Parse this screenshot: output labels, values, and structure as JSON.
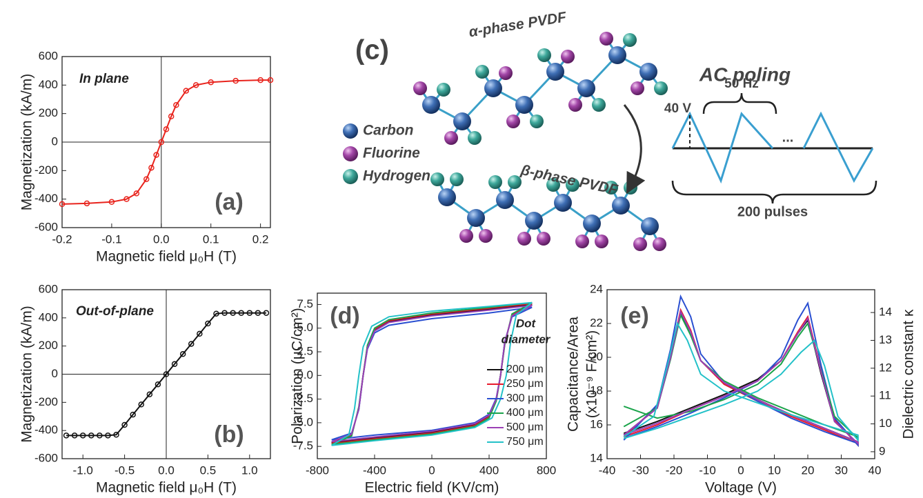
{
  "chart_data": [
    {
      "type": "line",
      "markers": true,
      "zero_lines": true,
      "xlabel": "Magnetic field μ₀H (T)",
      "ylabel": "Magnetization (kA/m)",
      "annotations": [
        "In plane",
        "(a)"
      ],
      "xlim": [
        -0.2,
        0.22
      ],
      "ylim": [
        -600,
        600
      ],
      "xticks": [
        -0.2,
        -0.1,
        {
          "value": 0,
          "label": "0.0"
        },
        0.1,
        0.2
      ],
      "yticks": [
        -600,
        -400,
        -200,
        0,
        200,
        400,
        600
      ],
      "series": [
        {
          "color": "#e8231c",
          "x": [
            -0.2,
            -0.15,
            -0.1,
            -0.07,
            -0.05,
            -0.03,
            -0.02,
            -0.01,
            0,
            0.01,
            0.02,
            0.03,
            0.05,
            0.07,
            0.1,
            0.15,
            0.2,
            0.22
          ],
          "values": [
            -435,
            -430,
            -420,
            -400,
            -360,
            -260,
            -180,
            -90,
            0,
            90,
            180,
            260,
            360,
            400,
            420,
            430,
            435,
            435
          ]
        }
      ]
    },
    {
      "type": "line",
      "markers": true,
      "zero_lines": true,
      "xlabel": "Magnetic field μ₀H (T)",
      "ylabel": "Magnetization (kA/m)",
      "annotations": [
        "Out-of-plane",
        "(b)"
      ],
      "xlim": [
        -1.25,
        1.25
      ],
      "ylim": [
        -600,
        600
      ],
      "xticks": [
        {
          "value": -1,
          "label": "-1.0"
        },
        -0.5,
        {
          "value": 0,
          "label": "0.0"
        },
        0.5,
        {
          "value": 1,
          "label": "1.0"
        }
      ],
      "yticks": [
        -600,
        -400,
        -200,
        0,
        200,
        400,
        600
      ],
      "series": [
        {
          "color": "#111111",
          "x": [
            -1.2,
            -1.1,
            -1.0,
            -0.9,
            -0.8,
            -0.7,
            -0.6,
            -0.5,
            -0.4,
            -0.3,
            -0.2,
            -0.1,
            0,
            0.1,
            0.2,
            0.3,
            0.4,
            0.5,
            0.6,
            0.7,
            0.8,
            0.9,
            1.0,
            1.1,
            1.2
          ],
          "values": [
            -435,
            -435,
            -435,
            -435,
            -435,
            -435,
            -430,
            -360,
            -287,
            -215,
            -143,
            -72,
            0,
            72,
            143,
            215,
            287,
            360,
            430,
            435,
            435,
            435,
            435,
            435,
            435
          ]
        }
      ]
    },
    {
      "type": "line",
      "legend": true,
      "xlabel": "Electric field (KV/cm)",
      "ylabel": "Polarization (μC/cm²)",
      "annotations": [
        "(d)"
      ],
      "legend_title": [
        "Dot",
        "diameter"
      ],
      "xlim": [
        -800,
        800
      ],
      "ylim": [
        -8.8,
        8.7
      ],
      "xticks": [
        -800,
        -400,
        0,
        400,
        800
      ],
      "yticks": [
        -7.5,
        {
          "value": -5,
          "label": "-5.0"
        },
        -2.5,
        {
          "value": 0,
          "label": "0.0"
        },
        2.5,
        {
          "value": 5,
          "label": "5.0"
        },
        7.5
      ],
      "series": [
        {
          "name": "200 μm",
          "color": "#111111",
          "x": [
            700,
            400,
            0,
            -300,
            -400,
            -450,
            -480,
            -510,
            -560,
            -700,
            -700,
            -400,
            0,
            300,
            400,
            450,
            480,
            510,
            560,
            700
          ],
          "values": [
            7.5,
            7.0,
            6.4,
            5.7,
            4.8,
            3.0,
            0,
            -3.5,
            -6.2,
            -7.1,
            -7.1,
            -6.6,
            -6.0,
            -5.2,
            -4.3,
            -2.5,
            0,
            3.5,
            6.3,
            7.5
          ]
        },
        {
          "name": "250 μm",
          "color": "#e8192c",
          "x": [
            700,
            400,
            0,
            -300,
            -400,
            -450,
            -480,
            -510,
            -560,
            -700,
            -700,
            -400,
            0,
            300,
            400,
            450,
            480,
            510,
            560,
            700
          ],
          "values": [
            7.6,
            7.1,
            6.5,
            5.8,
            4.9,
            3.1,
            0,
            -3.4,
            -6.3,
            -7.2,
            -7.2,
            -6.7,
            -6.1,
            -5.3,
            -4.4,
            -2.6,
            0,
            3.4,
            6.4,
            7.6
          ]
        },
        {
          "name": "300 μm",
          "color": "#2a4fd1",
          "x": [
            700,
            400,
            0,
            -300,
            -400,
            -450,
            -480,
            -510,
            -560,
            -700,
            -700,
            -400,
            0,
            300,
            400,
            450,
            480,
            510,
            560,
            700
          ],
          "values": [
            7.2,
            6.6,
            6.0,
            5.3,
            4.5,
            2.8,
            0,
            -3.6,
            -6.1,
            -6.8,
            -6.8,
            -6.3,
            -5.8,
            -5.0,
            -4.1,
            -2.4,
            0,
            3.6,
            6.2,
            7.2
          ]
        },
        {
          "name": "400 μm",
          "color": "#1aa34a",
          "x": [
            700,
            400,
            0,
            -300,
            -400,
            -450,
            -480,
            -510,
            -560,
            -700,
            -700,
            -400,
            0,
            300,
            400,
            450,
            480,
            510,
            560,
            700
          ],
          "values": [
            7.7,
            7.2,
            6.6,
            5.9,
            5.0,
            3.2,
            0,
            -3.3,
            -6.4,
            -7.3,
            -7.3,
            -6.8,
            -6.2,
            -5.4,
            -4.5,
            -2.7,
            0,
            3.3,
            6.5,
            7.7
          ]
        },
        {
          "name": "500 μm",
          "color": "#9b3fb5",
          "x": [
            700,
            400,
            0,
            -300,
            -400,
            -450,
            -480,
            -510,
            -560,
            -700,
            -700,
            -400,
            0,
            300,
            400,
            450,
            480,
            510,
            560,
            700
          ],
          "values": [
            7.4,
            6.9,
            6.3,
            5.6,
            4.7,
            2.9,
            0,
            -3.5,
            -6.2,
            -7.0,
            -7.0,
            -6.5,
            -5.9,
            -5.1,
            -4.2,
            -2.5,
            0,
            3.5,
            6.3,
            7.4
          ]
        },
        {
          "name": "750 μm",
          "color": "#23c1c8",
          "x": [
            700,
            400,
            0,
            -300,
            -420,
            -480,
            -510,
            -540,
            -580,
            -700,
            -700,
            -400,
            0,
            300,
            420,
            480,
            520,
            550,
            590,
            700
          ],
          "values": [
            7.7,
            7.3,
            6.8,
            6.2,
            5.2,
            3.0,
            0,
            -3.5,
            -6.3,
            -7.4,
            -7.4,
            -6.9,
            -6.3,
            -5.5,
            -4.5,
            -2.5,
            0,
            3.5,
            6.4,
            7.7
          ]
        }
      ]
    },
    {
      "type": "line",
      "xlabel": "Voltage (V)",
      "ylabel": [
        "Capacitance/Area",
        "(x10⁻⁹ F/cm²)"
      ],
      "y2label": "Dielectric constant κ",
      "annotations": [
        "(e)"
      ],
      "xlim": [
        -40,
        40
      ],
      "ylim": [
        14,
        24
      ],
      "y2lim": [
        8.75,
        14.82
      ],
      "xticks": [
        -40,
        -30,
        -20,
        -10,
        0,
        10,
        20,
        30,
        40
      ],
      "yticks": [
        14,
        16,
        18,
        20,
        22,
        24
      ],
      "y2ticks": [
        9,
        10,
        11,
        12,
        13,
        14
      ],
      "series": [
        {
          "color": "#111111",
          "x": [
            -35,
            -25,
            -15,
            -5,
            5,
            12,
            17,
            20,
            24,
            28,
            35,
            35,
            25,
            15,
            5,
            -5,
            -12,
            -15,
            -18,
            -21,
            -25,
            -35
          ],
          "values": [
            15.5,
            16.2,
            17.0,
            17.8,
            18.7,
            19.8,
            21.4,
            22.2,
            19.0,
            16.2,
            14.9,
            15.0,
            15.8,
            16.6,
            17.5,
            18.5,
            19.8,
            21.5,
            22.6,
            20.0,
            17.0,
            15.4
          ]
        },
        {
          "color": "#e8192c",
          "x": [
            -35,
            -25,
            -15,
            -5,
            5,
            12,
            17,
            20,
            24,
            28,
            35,
            35,
            25,
            15,
            5,
            -5,
            -12,
            -15,
            -18,
            -21,
            -25,
            -35
          ],
          "values": [
            15.3,
            16.0,
            16.9,
            17.7,
            18.6,
            19.8,
            21.5,
            22.4,
            19.2,
            16.3,
            14.8,
            14.9,
            15.7,
            16.5,
            17.4,
            18.4,
            19.8,
            21.6,
            22.8,
            20.1,
            17.1,
            15.3
          ]
        },
        {
          "color": "#2a4fd1",
          "x": [
            -35,
            -25,
            -15,
            -5,
            5,
            12,
            17,
            20,
            24,
            28,
            35,
            35,
            25,
            15,
            5,
            -5,
            -12,
            -15,
            -18,
            -21,
            -25,
            -35
          ],
          "values": [
            15.2,
            15.9,
            16.7,
            17.6,
            18.6,
            20.0,
            22.2,
            23.2,
            19.5,
            16.4,
            14.8,
            14.9,
            15.6,
            16.4,
            17.4,
            18.5,
            20.2,
            22.4,
            23.6,
            20.5,
            17.2,
            15.1
          ]
        },
        {
          "color": "#1aa34a",
          "x": [
            -35,
            -25,
            -15,
            -5,
            5,
            12,
            17,
            20,
            24,
            28,
            35,
            35,
            25,
            15,
            5,
            -5,
            -12,
            -15,
            -18,
            -21,
            -25,
            -35
          ],
          "values": [
            17.1,
            16.4,
            16.8,
            17.5,
            18.4,
            19.6,
            21.2,
            22.0,
            19.2,
            16.5,
            15.2,
            15.3,
            16.0,
            16.8,
            17.6,
            18.6,
            19.8,
            21.3,
            22.5,
            19.9,
            17.0,
            15.9
          ]
        },
        {
          "color": "#9b3fb5",
          "x": [
            -35,
            -25,
            -15,
            -5,
            5,
            12,
            17,
            20,
            24,
            28,
            35,
            35,
            25,
            15,
            5,
            -5,
            -12,
            -15,
            -18,
            -21,
            -25,
            -35
          ],
          "values": [
            15.4,
            16.1,
            16.9,
            17.7,
            18.6,
            19.8,
            21.4,
            22.3,
            19.1,
            16.2,
            14.9,
            15.0,
            15.8,
            16.6,
            17.5,
            18.5,
            19.8,
            21.5,
            22.7,
            20.0,
            17.0,
            15.4
          ]
        },
        {
          "color": "#23c1c8",
          "x": [
            -35,
            -25,
            -15,
            -5,
            5,
            12,
            18,
            22,
            25,
            29,
            35,
            35,
            25,
            15,
            5,
            -5,
            -12,
            -16,
            -19,
            -22,
            -26,
            -35
          ],
          "values": [
            15.2,
            15.8,
            16.5,
            17.2,
            18.0,
            19.0,
            20.3,
            21.0,
            19.5,
            16.5,
            15.1,
            15.4,
            16.0,
            16.6,
            17.3,
            18.0,
            19.0,
            21.0,
            22.0,
            19.5,
            16.5,
            15.3
          ]
        }
      ]
    }
  ],
  "diagram": {
    "panel": "(c)",
    "alpha": "α-phase PVDF",
    "beta": "β-phase PVDF",
    "legend": [
      "Carbon",
      "Fluorine",
      "Hydrogen"
    ],
    "poling_title": "AC poling",
    "voltage": "40 V",
    "frequency": "50 Hz",
    "ellipsis": "...",
    "pulses": "200 pulses"
  }
}
